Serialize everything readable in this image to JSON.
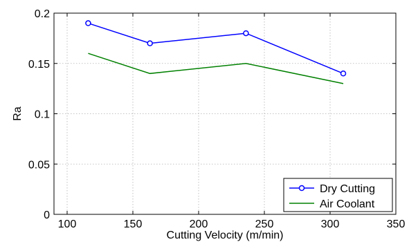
{
  "chart_data": {
    "type": "line",
    "title": "",
    "xlabel": "Cutting Velocity (m/min)",
    "ylabel": "Ra",
    "xlim": [
      90,
      350
    ],
    "ylim": [
      0,
      0.2
    ],
    "xticks": [
      100,
      150,
      200,
      250,
      300,
      350
    ],
    "yticks": [
      0,
      0.05,
      0.1,
      0.15,
      0.2
    ],
    "xtick_labels": [
      "100",
      "150",
      "200",
      "250",
      "300",
      "350"
    ],
    "ytick_labels": [
      "0",
      "0.05",
      "0.1",
      "0.15",
      "0.2"
    ],
    "grid": true,
    "legend_position": "bottom-right",
    "series": [
      {
        "name": "Dry Cutting",
        "color": "#0000ff",
        "marker": "circle",
        "x": [
          116,
          163,
          236,
          310
        ],
        "y": [
          0.19,
          0.17,
          0.18,
          0.14
        ]
      },
      {
        "name": "Air Coolant",
        "color": "#008000",
        "marker": "none",
        "x": [
          116,
          163,
          236,
          310
        ],
        "y": [
          0.16,
          0.14,
          0.15,
          0.13
        ]
      }
    ]
  }
}
